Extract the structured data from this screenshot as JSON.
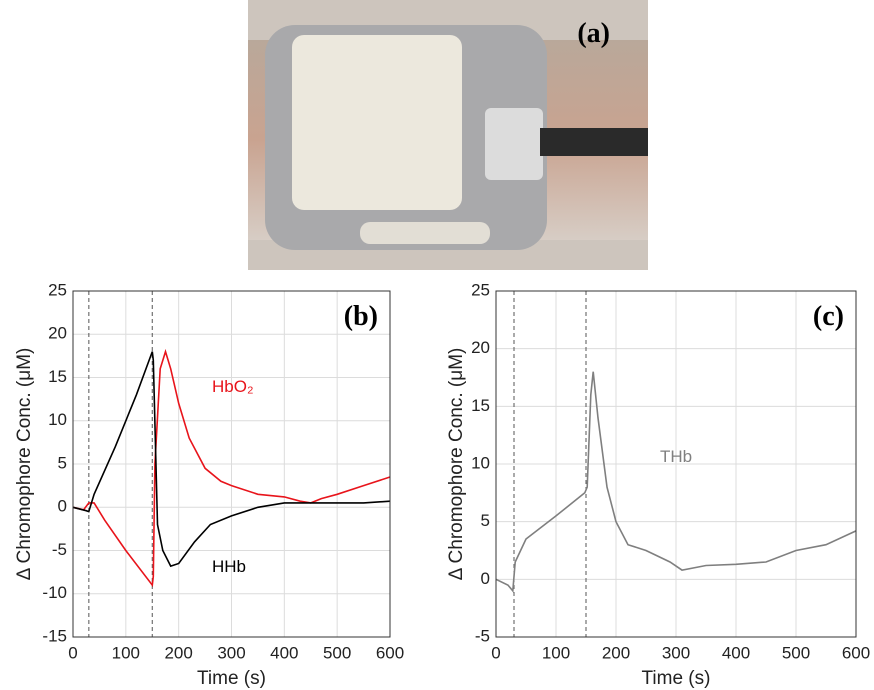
{
  "photo": {
    "label": "(a)"
  },
  "chart_data": [
    {
      "type": "line",
      "title": "(b)",
      "xlabel": "Time (s)",
      "ylabel": "Δ Chromophore Conc. (μM)",
      "xlim": [
        0,
        600
      ],
      "xticks": [
        0,
        100,
        200,
        300,
        400,
        500,
        600
      ],
      "ylim": [
        -15,
        25
      ],
      "yticks": [
        -15,
        -10,
        -5,
        0,
        5,
        10,
        15,
        20,
        25
      ],
      "grid": true,
      "vlines": [
        30,
        150
      ],
      "series": [
        {
          "name": "HbO₂",
          "color": "#e8141b",
          "x": [
            0,
            20,
            30,
            40,
            60,
            100,
            150,
            152,
            155,
            165,
            175,
            185,
            200,
            220,
            250,
            280,
            300,
            350,
            400,
            430,
            450,
            470,
            500,
            550,
            600
          ],
          "values": [
            0,
            -0.3,
            0.5,
            0.5,
            -1.5,
            -5,
            -9,
            -8,
            5,
            16,
            18,
            16,
            12,
            8,
            4.5,
            3,
            2.5,
            1.5,
            1.2,
            0.7,
            0.5,
            1,
            1.5,
            2.5,
            3.5
          ]
        },
        {
          "name": "HHb",
          "color": "#000000",
          "x": [
            0,
            25,
            30,
            40,
            80,
            120,
            150,
            152,
            160,
            170,
            185,
            200,
            230,
            260,
            300,
            350,
            400,
            450,
            500,
            550,
            600
          ],
          "values": [
            0,
            -0.4,
            -0.5,
            1.5,
            7,
            13,
            18,
            17,
            -2,
            -5,
            -6.8,
            -6.5,
            -4,
            -2,
            -1,
            0,
            0.5,
            0.5,
            0.5,
            0.5,
            0.7
          ]
        }
      ]
    },
    {
      "type": "line",
      "title": "(c)",
      "xlabel": "Time (s)",
      "ylabel": "Δ Chromophore Conc. (μM)",
      "xlim": [
        0,
        600
      ],
      "xticks": [
        0,
        100,
        200,
        300,
        400,
        500,
        600
      ],
      "ylim": [
        -5,
        25
      ],
      "yticks": [
        -5,
        0,
        5,
        10,
        15,
        20,
        25
      ],
      "grid": true,
      "vlines": [
        30,
        150
      ],
      "series": [
        {
          "name": "THb",
          "color": "#7f7f7f",
          "x": [
            0,
            20,
            28,
            32,
            50,
            100,
            148,
            152,
            158,
            162,
            170,
            185,
            200,
            220,
            250,
            290,
            310,
            350,
            400,
            450,
            500,
            550,
            600
          ],
          "values": [
            0,
            -0.5,
            -1,
            1.5,
            3.5,
            5.5,
            7.5,
            8,
            16,
            18,
            14,
            8,
            5,
            3,
            2.5,
            1.5,
            0.8,
            1.2,
            1.3,
            1.5,
            2.5,
            3,
            4.2
          ]
        }
      ]
    }
  ]
}
